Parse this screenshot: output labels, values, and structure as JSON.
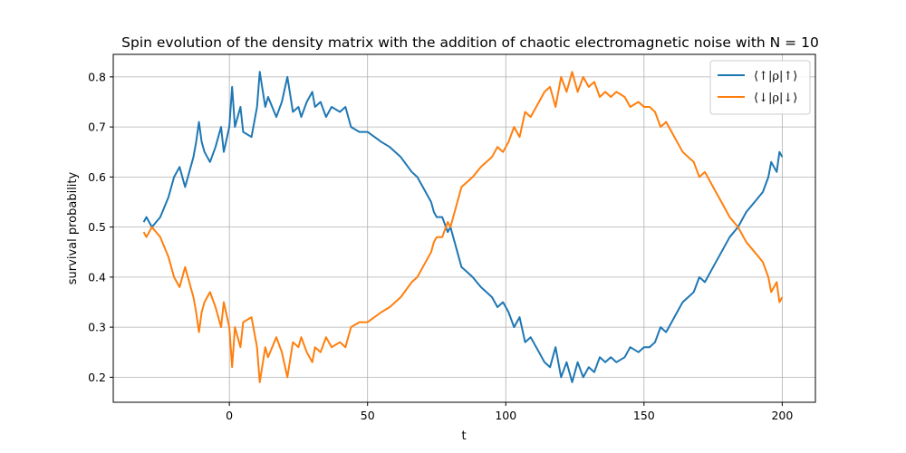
{
  "chart_data": {
    "type": "line",
    "title": "Spin evolution of the density matrix with the addition of chaotic electromagnetic noise with N = 10",
    "xlabel": "t",
    "ylabel": "survival probability",
    "xlim": [
      -42,
      212
    ],
    "ylim": [
      0.15,
      0.845
    ],
    "xticks": [
      0,
      50,
      100,
      150,
      200
    ],
    "xtick_labels": [
      "0",
      "50",
      "100",
      "150",
      "200"
    ],
    "yticks": [
      0.2,
      0.3,
      0.4,
      0.5,
      0.6,
      0.7,
      0.8
    ],
    "ytick_labels": [
      "0.2",
      "0.3",
      "0.4",
      "0.5",
      "0.6",
      "0.7",
      "0.8"
    ],
    "grid": true,
    "legend_position": "top-right",
    "series": [
      {
        "name": "⟨↑|ρ|↑⟩",
        "color": "#1f77b4",
        "x": [
          -31,
          -30,
          -28,
          -25,
          -22,
          -20,
          -18,
          -16,
          -15,
          -13,
          -12,
          -11,
          -10,
          -9,
          -7,
          -5,
          -3,
          -2,
          0,
          1,
          2,
          4,
          5,
          8,
          10,
          11,
          13,
          14,
          17,
          19,
          21,
          23,
          25,
          26,
          28,
          30,
          31,
          33,
          35,
          37,
          40,
          42,
          44,
          47,
          50,
          55,
          58,
          62,
          66,
          68,
          70,
          73,
          74,
          75,
          77,
          79,
          80,
          82,
          84,
          86,
          88,
          91,
          93,
          95,
          97,
          99,
          101,
          103,
          105,
          107,
          109,
          112,
          114,
          116,
          118,
          120,
          122,
          124,
          126,
          128,
          130,
          132,
          134,
          136,
          138,
          140,
          143,
          145,
          148,
          150,
          152,
          154,
          156,
          158,
          160,
          162,
          164,
          166,
          168,
          170,
          172,
          175,
          178,
          181,
          184,
          187,
          190,
          193,
          195,
          196,
          198,
          199,
          200
        ],
        "y": [
          0.51,
          0.52,
          0.5,
          0.52,
          0.56,
          0.6,
          0.62,
          0.58,
          0.6,
          0.64,
          0.67,
          0.71,
          0.67,
          0.65,
          0.63,
          0.66,
          0.7,
          0.65,
          0.7,
          0.78,
          0.7,
          0.74,
          0.69,
          0.68,
          0.74,
          0.81,
          0.74,
          0.76,
          0.72,
          0.75,
          0.8,
          0.73,
          0.74,
          0.72,
          0.75,
          0.77,
          0.74,
          0.75,
          0.72,
          0.74,
          0.73,
          0.74,
          0.7,
          0.69,
          0.69,
          0.67,
          0.66,
          0.64,
          0.61,
          0.6,
          0.58,
          0.55,
          0.53,
          0.52,
          0.52,
          0.49,
          0.5,
          0.46,
          0.42,
          0.41,
          0.4,
          0.38,
          0.37,
          0.36,
          0.34,
          0.35,
          0.33,
          0.3,
          0.32,
          0.27,
          0.28,
          0.25,
          0.23,
          0.22,
          0.26,
          0.2,
          0.23,
          0.19,
          0.23,
          0.2,
          0.22,
          0.21,
          0.24,
          0.23,
          0.24,
          0.23,
          0.24,
          0.26,
          0.25,
          0.26,
          0.26,
          0.27,
          0.3,
          0.29,
          0.31,
          0.33,
          0.35,
          0.36,
          0.37,
          0.4,
          0.39,
          0.42,
          0.45,
          0.48,
          0.5,
          0.53,
          0.55,
          0.57,
          0.6,
          0.63,
          0.61,
          0.65,
          0.64
        ]
      },
      {
        "name": "⟨↓|ρ|↓⟩",
        "color": "#ff7f0e",
        "x": [
          -31,
          -30,
          -28,
          -25,
          -22,
          -20,
          -18,
          -16,
          -15,
          -13,
          -12,
          -11,
          -10,
          -9,
          -7,
          -5,
          -3,
          -2,
          0,
          1,
          2,
          4,
          5,
          8,
          10,
          11,
          13,
          14,
          17,
          19,
          21,
          23,
          25,
          26,
          28,
          30,
          31,
          33,
          35,
          37,
          40,
          42,
          44,
          47,
          50,
          55,
          58,
          62,
          66,
          68,
          70,
          73,
          74,
          75,
          77,
          79,
          80,
          82,
          84,
          86,
          88,
          91,
          93,
          95,
          97,
          99,
          101,
          103,
          105,
          107,
          109,
          112,
          114,
          116,
          118,
          120,
          122,
          124,
          126,
          128,
          130,
          132,
          134,
          136,
          138,
          140,
          143,
          145,
          148,
          150,
          152,
          154,
          156,
          158,
          160,
          162,
          164,
          166,
          168,
          170,
          172,
          175,
          178,
          181,
          184,
          187,
          190,
          193,
          195,
          196,
          198,
          199,
          200
        ],
        "y": [
          0.49,
          0.48,
          0.5,
          0.48,
          0.44,
          0.4,
          0.38,
          0.42,
          0.4,
          0.36,
          0.33,
          0.29,
          0.33,
          0.35,
          0.37,
          0.34,
          0.3,
          0.35,
          0.3,
          0.22,
          0.3,
          0.26,
          0.31,
          0.32,
          0.26,
          0.19,
          0.26,
          0.24,
          0.28,
          0.25,
          0.2,
          0.27,
          0.26,
          0.28,
          0.25,
          0.23,
          0.26,
          0.25,
          0.28,
          0.26,
          0.27,
          0.26,
          0.3,
          0.31,
          0.31,
          0.33,
          0.34,
          0.36,
          0.39,
          0.4,
          0.42,
          0.45,
          0.47,
          0.48,
          0.48,
          0.51,
          0.5,
          0.54,
          0.58,
          0.59,
          0.6,
          0.62,
          0.63,
          0.64,
          0.66,
          0.65,
          0.67,
          0.7,
          0.68,
          0.73,
          0.72,
          0.75,
          0.77,
          0.78,
          0.74,
          0.8,
          0.77,
          0.81,
          0.77,
          0.8,
          0.78,
          0.79,
          0.76,
          0.77,
          0.76,
          0.77,
          0.76,
          0.74,
          0.75,
          0.74,
          0.74,
          0.73,
          0.7,
          0.71,
          0.69,
          0.67,
          0.65,
          0.64,
          0.63,
          0.6,
          0.61,
          0.58,
          0.55,
          0.52,
          0.5,
          0.47,
          0.45,
          0.43,
          0.4,
          0.37,
          0.39,
          0.35,
          0.36
        ]
      }
    ]
  }
}
